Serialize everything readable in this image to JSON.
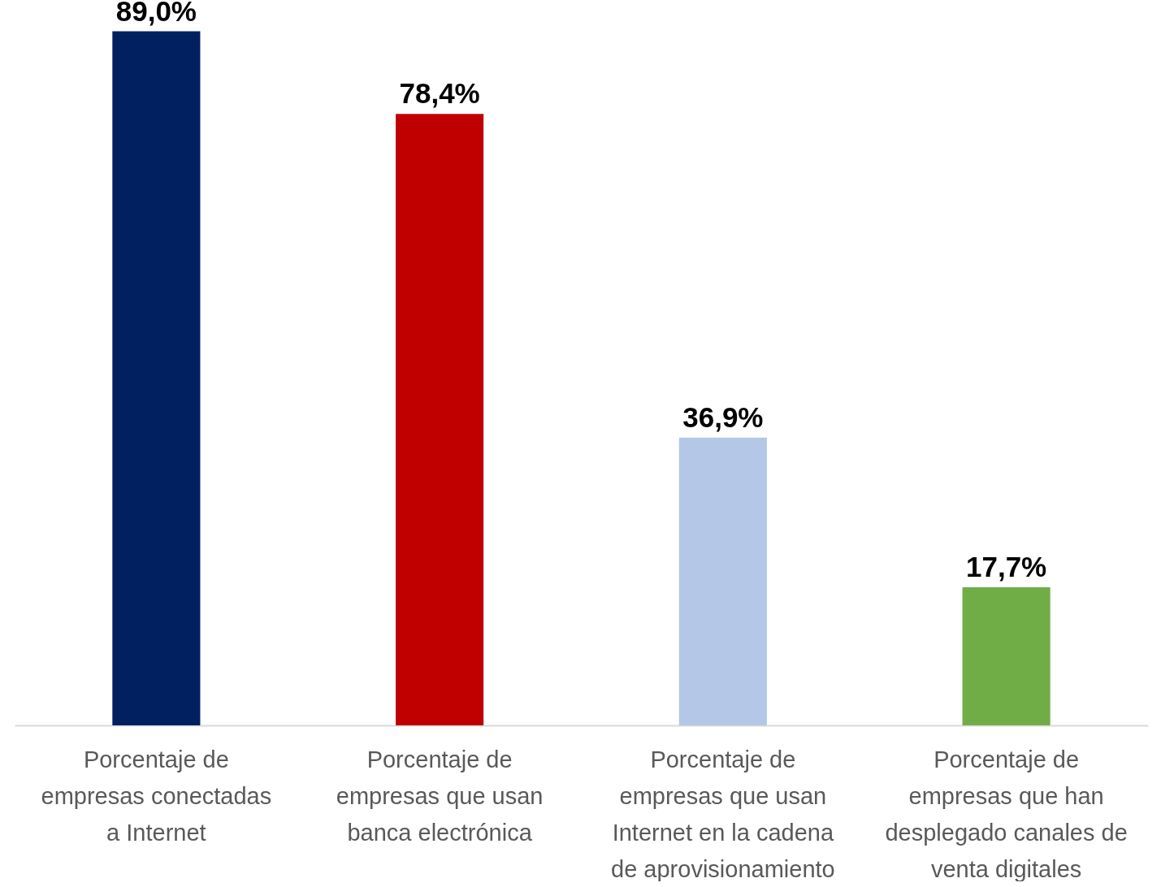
{
  "chart_data": {
    "type": "bar",
    "categories": [
      "Porcentaje de empresas conectadas a Internet",
      "Porcentaje de empresas que usan banca electrónica",
      "Porcentaje de empresas que usan Internet en la cadena de aprovisionamiento",
      "Porcentaje de empresas que han desplegado canales de venta digitales"
    ],
    "values": [
      89.0,
      78.4,
      36.9,
      17.7
    ],
    "value_labels": [
      "89,0%",
      "78,4%",
      "36,9%",
      "17,7%"
    ],
    "colors": [
      "#002060",
      "#c00000",
      "#b4c7e7",
      "#70ad47"
    ]
  }
}
